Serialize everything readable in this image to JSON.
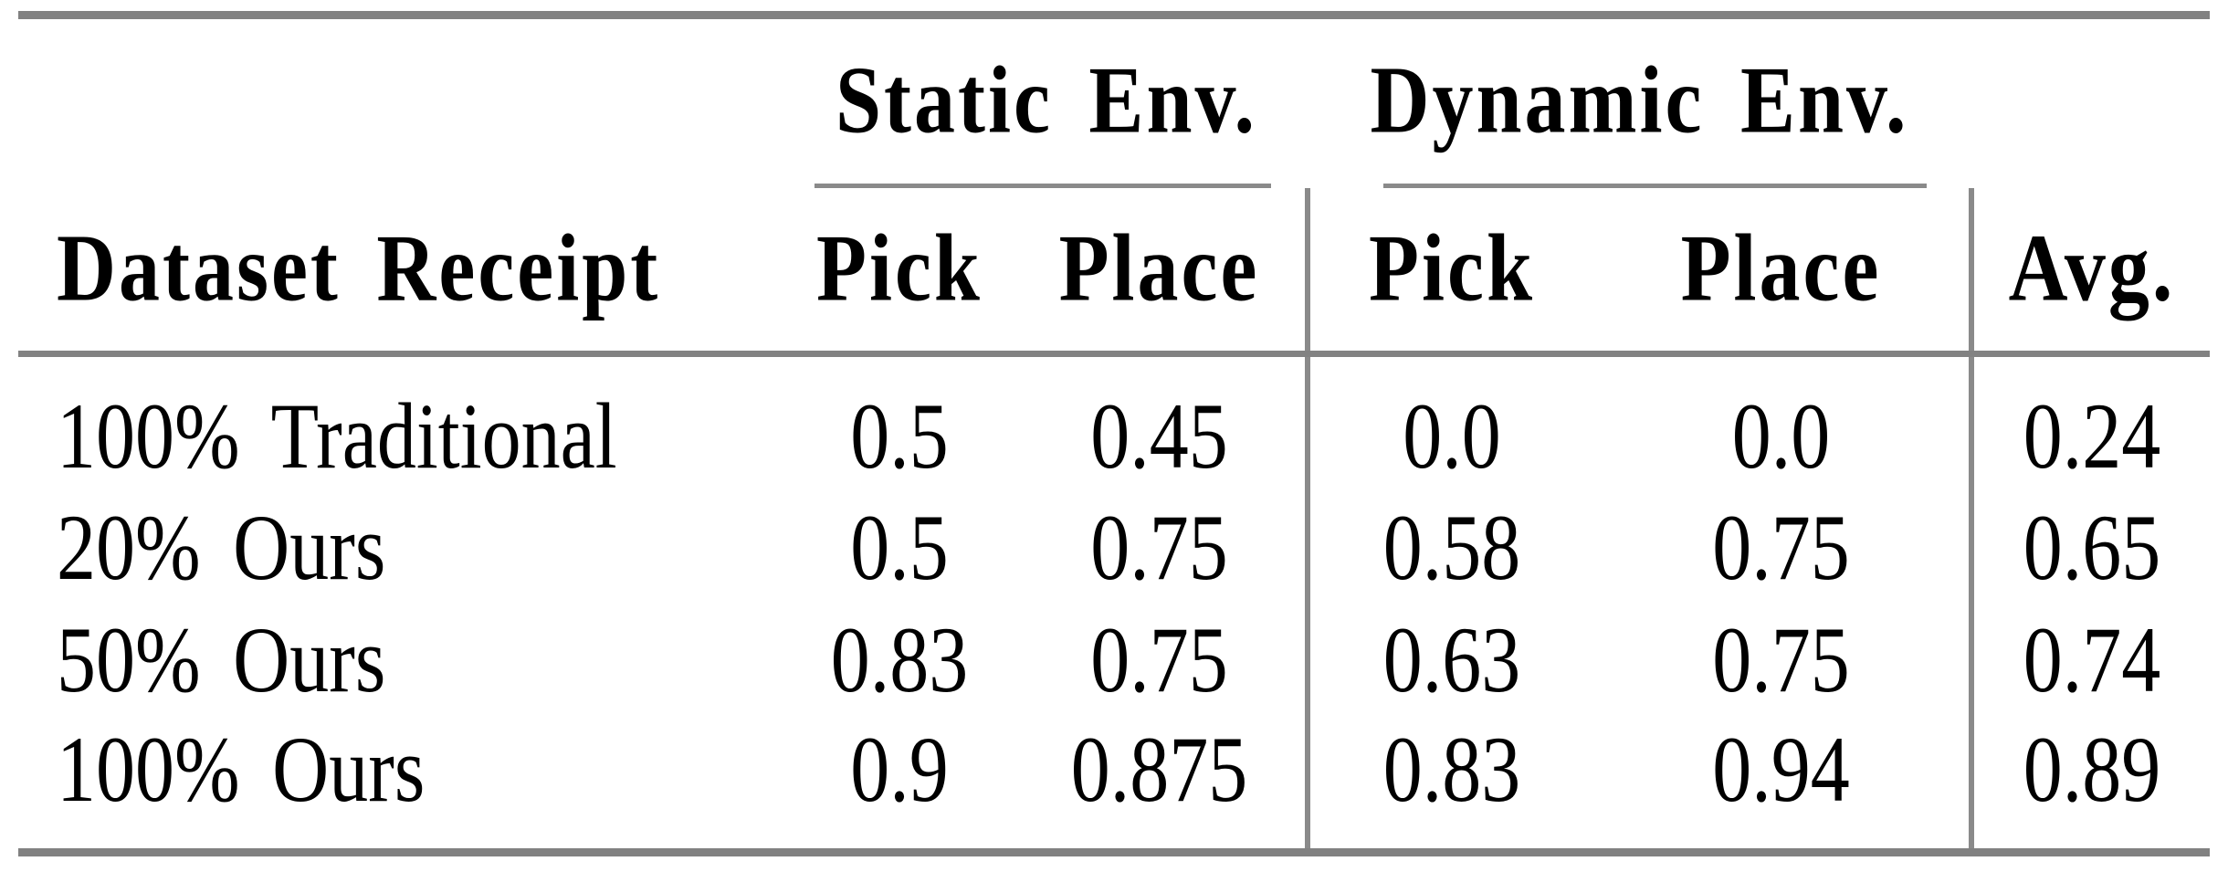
{
  "page": {
    "background": "#ffffff"
  },
  "table": {
    "group_headers": [
      {
        "label": "Static Env."
      },
      {
        "label": "Dynamic Env."
      }
    ],
    "columns": [
      "Dataset Receipt",
      "Pick",
      "Place",
      "Pick",
      "Place",
      "Avg."
    ],
    "rows": [
      [
        "100% Traditional",
        "0.5",
        "0.45",
        "0.0",
        "0.0",
        "0.24"
      ],
      [
        "20% Ours",
        "0.5",
        "0.75",
        "0.58",
        "0.75",
        "0.65"
      ],
      [
        "50% Ours",
        "0.83",
        "0.75",
        "0.63",
        "0.75",
        "0.74"
      ],
      [
        "100% Ours",
        "0.9",
        "0.875",
        "0.83",
        "0.94",
        "0.89"
      ]
    ],
    "colors": {
      "rule_thick": "#818181",
      "rule_thin": "#8a8a8a",
      "text": "#000000"
    }
  },
  "chart_data": {
    "type": "table",
    "title": "",
    "column_groups": [
      {
        "label": "Static Env.",
        "columns": [
          "Pick",
          "Place"
        ]
      },
      {
        "label": "Dynamic Env.",
        "columns": [
          "Pick",
          "Place"
        ]
      }
    ],
    "row_label_header": "Dataset Receipt",
    "categories": [
      "100% Traditional",
      "20% Ours",
      "50% Ours",
      "100% Ours"
    ],
    "series": [
      {
        "name": "Static Env. Pick",
        "values": [
          0.5,
          0.5,
          0.83,
          0.9
        ]
      },
      {
        "name": "Static Env. Place",
        "values": [
          0.45,
          0.75,
          0.75,
          0.875
        ]
      },
      {
        "name": "Dynamic Env. Pick",
        "values": [
          0.0,
          0.58,
          0.63,
          0.83
        ]
      },
      {
        "name": "Dynamic Env. Place",
        "values": [
          0.0,
          0.75,
          0.75,
          0.94
        ]
      },
      {
        "name": "Avg.",
        "values": [
          0.24,
          0.65,
          0.74,
          0.89
        ]
      }
    ]
  }
}
